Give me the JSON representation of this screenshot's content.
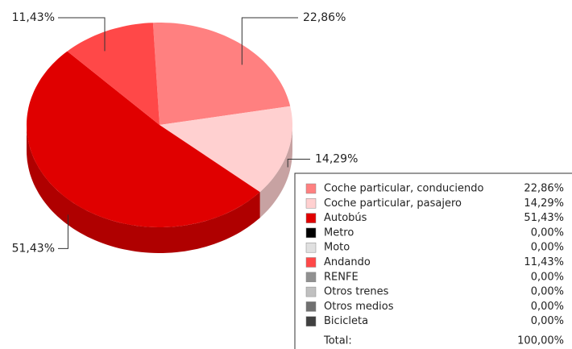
{
  "chart_data": {
    "type": "pie",
    "categories": [
      "Coche particular, conduciendo",
      "Coche particular, pasajero",
      "Autobús",
      "Metro",
      "Moto",
      "Andando",
      "RENFE",
      "Otros trenes",
      "Otros medios",
      "Bicicleta"
    ],
    "values": [
      22.86,
      14.29,
      51.43,
      0,
      0,
      11.43,
      0,
      0,
      0,
      0
    ],
    "value_labels": [
      "22,86%",
      "14,29%",
      "51,43%",
      "0,00%",
      "0,00%",
      "11,43%",
      "0,00%",
      "0,00%",
      "0,00%",
      "0,00%"
    ],
    "colors": [
      "#ff8080",
      "#ffd0d0",
      "#e00000",
      "#000000",
      "#e0e0e0",
      "#ff4848",
      "#909090",
      "#c0c0c0",
      "#707070",
      "#404040"
    ],
    "total_label": "Total:",
    "total": 100,
    "total_value_label": "100,00%"
  }
}
